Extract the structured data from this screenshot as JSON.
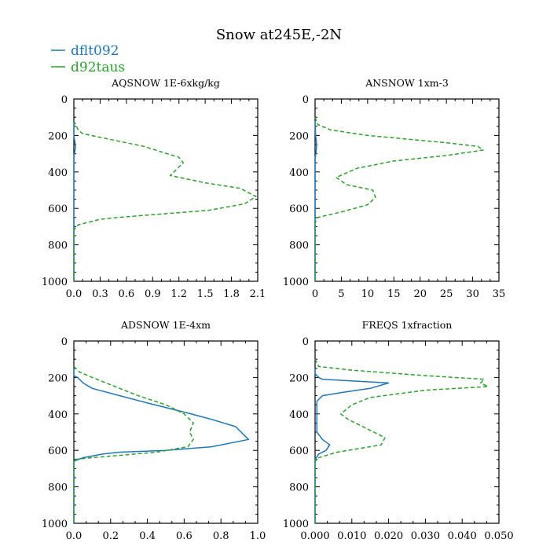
{
  "title": "Snow at245E,-2N",
  "legend": [
    {
      "name": "dflt092",
      "color": "#1f77b4",
      "style": "solid"
    },
    {
      "name": "d92taus",
      "color": "#2ca02c",
      "style": "dashed"
    }
  ],
  "chart_data": [
    {
      "type": "line",
      "title": "AQSNOW  1E-6xkg/kg",
      "xlim": [
        0,
        2.1
      ],
      "ylim": [
        1000,
        0
      ],
      "xticks": [
        "0.0",
        "0.3",
        "0.6",
        "0.9",
        "1.2",
        "1.5",
        "1.8",
        "2.1"
      ],
      "xtick_values": [
        0,
        0.3,
        0.6,
        0.9,
        1.2,
        1.5,
        1.8,
        2.1
      ],
      "yticks": [
        "0",
        "200",
        "400",
        "600",
        "800",
        "1000"
      ],
      "series": [
        {
          "name": "dflt092",
          "points": [
            [
              0,
              120
            ],
            [
              0,
              200
            ],
            [
              0.01,
              230
            ],
            [
              0.02,
              260
            ],
            [
              0.01,
              290
            ],
            [
              0,
              320
            ],
            [
              0,
              400
            ],
            [
              0,
              1000
            ]
          ]
        },
        {
          "name": "d92taus",
          "points": [
            [
              0,
              120
            ],
            [
              0.02,
              140
            ],
            [
              0.05,
              170
            ],
            [
              0.1,
              190
            ],
            [
              0.5,
              230
            ],
            [
              0.8,
              260
            ],
            [
              1.0,
              290
            ],
            [
              1.2,
              320
            ],
            [
              1.25,
              350
            ],
            [
              1.1,
              420
            ],
            [
              1.5,
              460
            ],
            [
              1.9,
              490
            ],
            [
              2.08,
              535
            ],
            [
              1.95,
              575
            ],
            [
              1.55,
              610
            ],
            [
              0.5,
              650
            ],
            [
              0.3,
              660
            ],
            [
              0.05,
              690
            ],
            [
              0,
              720
            ],
            [
              0,
              1000
            ]
          ]
        }
      ]
    },
    {
      "type": "line",
      "title": "ANSNOW  1xm-3",
      "xlim": [
        0,
        35
      ],
      "ylim": [
        1000,
        0
      ],
      "xticks": [
        "0",
        "5",
        "10",
        "15",
        "20",
        "25",
        "30",
        "35"
      ],
      "xtick_values": [
        0,
        5,
        10,
        15,
        20,
        25,
        30,
        35
      ],
      "yticks": [
        "0",
        "200",
        "400",
        "600",
        "800",
        "1000"
      ],
      "series": [
        {
          "name": "dflt092",
          "points": [
            [
              0,
              120
            ],
            [
              0.1,
              200
            ],
            [
              0.3,
              250
            ],
            [
              0.2,
              290
            ],
            [
              0,
              330
            ],
            [
              0,
              1000
            ]
          ]
        },
        {
          "name": "d92taus",
          "points": [
            [
              0,
              100
            ],
            [
              0.5,
              140
            ],
            [
              3,
              170
            ],
            [
              10,
              200
            ],
            [
              25,
              240
            ],
            [
              31,
              260
            ],
            [
              32,
              280
            ],
            [
              25,
              310
            ],
            [
              15,
              340
            ],
            [
              8,
              380
            ],
            [
              4,
              430
            ],
            [
              6,
              470
            ],
            [
              11,
              500
            ],
            [
              11.5,
              540
            ],
            [
              10,
              580
            ],
            [
              5,
              620
            ],
            [
              0.5,
              650
            ],
            [
              0,
              680
            ],
            [
              0,
              1000
            ]
          ]
        }
      ]
    },
    {
      "type": "line",
      "title": "ADSNOW  1E-4xm",
      "xlim": [
        0,
        1.0
      ],
      "ylim": [
        1000,
        0
      ],
      "xticks": [
        "0.0",
        "0.2",
        "0.4",
        "0.6",
        "0.8",
        "1.0"
      ],
      "xtick_values": [
        0,
        0.2,
        0.4,
        0.6,
        0.8,
        1.0
      ],
      "yticks": [
        "0",
        "200",
        "400",
        "600",
        "800",
        "1000"
      ],
      "series": [
        {
          "name": "dflt092",
          "points": [
            [
              0,
              150
            ],
            [
              0,
              190
            ],
            [
              0.02,
              200
            ],
            [
              0.05,
              230
            ],
            [
              0.1,
              260
            ],
            [
              0.25,
              300
            ],
            [
              0.4,
              340
            ],
            [
              0.6,
              390
            ],
            [
              0.75,
              430
            ],
            [
              0.88,
              470
            ],
            [
              0.95,
              540
            ],
            [
              0.75,
              580
            ],
            [
              0.5,
              600
            ],
            [
              0.25,
              610
            ],
            [
              0.16,
              620
            ],
            [
              0.05,
              640
            ],
            [
              0,
              660
            ],
            [
              0,
              1000
            ]
          ]
        },
        {
          "name": "d92taus",
          "points": [
            [
              0,
              140
            ],
            [
              0.03,
              170
            ],
            [
              0.1,
              200
            ],
            [
              0.2,
              240
            ],
            [
              0.35,
              300
            ],
            [
              0.5,
              350
            ],
            [
              0.6,
              400
            ],
            [
              0.65,
              450
            ],
            [
              0.63,
              500
            ],
            [
              0.65,
              540
            ],
            [
              0.62,
              580
            ],
            [
              0.45,
              610
            ],
            [
              0.1,
              640
            ],
            [
              0,
              650
            ],
            [
              0,
              1000
            ]
          ]
        }
      ]
    },
    {
      "type": "line",
      "title": "FREQS  1xfraction",
      "xlim": [
        0,
        0.05
      ],
      "ylim": [
        1000,
        0
      ],
      "xticks": [
        "0.000",
        "0.010",
        "0.020",
        "0.030",
        "0.040",
        "0.050"
      ],
      "xtick_values": [
        0,
        0.01,
        0.02,
        0.03,
        0.04,
        0.05
      ],
      "yticks": [
        "0",
        "200",
        "400",
        "600",
        "800",
        "1000"
      ],
      "series": [
        {
          "name": "dflt092",
          "points": [
            [
              0,
              150
            ],
            [
              0,
              180
            ],
            [
              0.001,
              200
            ],
            [
              0.002,
              210
            ],
            [
              0.02,
              230
            ],
            [
              0.015,
              260
            ],
            [
              0.008,
              280
            ],
            [
              0.002,
              300
            ],
            [
              0.0005,
              330
            ],
            [
              0.0005,
              500
            ],
            [
              0.002,
              540
            ],
            [
              0.004,
              570
            ],
            [
              0.003,
              600
            ],
            [
              0.001,
              620
            ],
            [
              0,
              650
            ],
            [
              0,
              1000
            ]
          ]
        },
        {
          "name": "d92taus",
          "points": [
            [
              0,
              100
            ],
            [
              0.001,
              140
            ],
            [
              0.01,
              160
            ],
            [
              0.03,
              190
            ],
            [
              0.046,
              210
            ],
            [
              0.045,
              230
            ],
            [
              0.047,
              250
            ],
            [
              0.03,
              270
            ],
            [
              0.015,
              310
            ],
            [
              0.01,
              350
            ],
            [
              0.007,
              400
            ],
            [
              0.009,
              430
            ],
            [
              0.013,
              470
            ],
            [
              0.019,
              530
            ],
            [
              0.018,
              570
            ],
            [
              0.006,
              610
            ],
            [
              0.001,
              640
            ],
            [
              0,
              660
            ],
            [
              0,
              1000
            ]
          ]
        }
      ]
    }
  ]
}
